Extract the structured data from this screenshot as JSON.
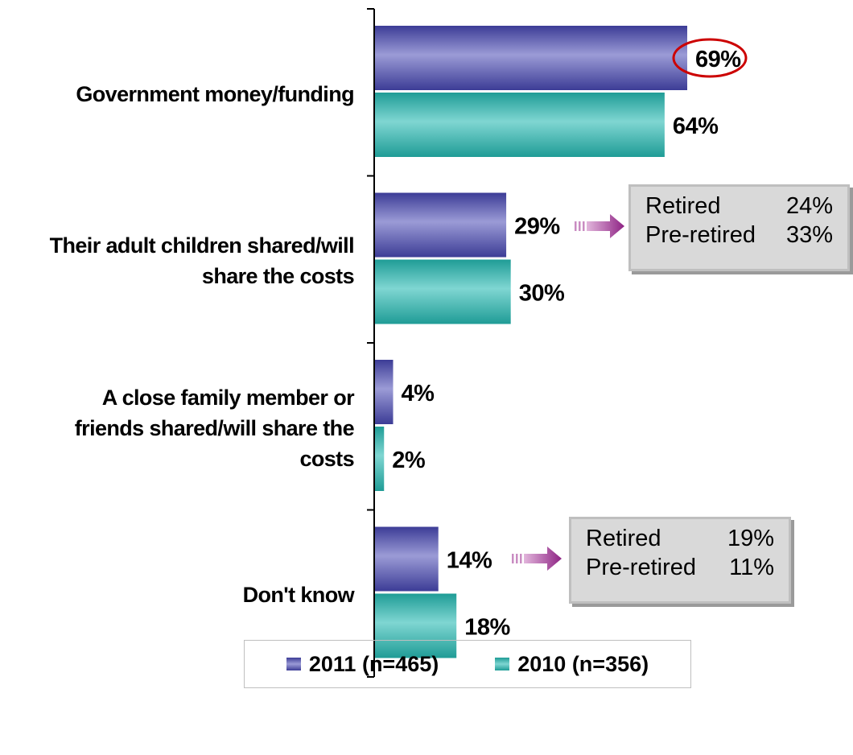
{
  "chart_data": {
    "type": "bar",
    "orientation": "horizontal",
    "categories": [
      "Government money/funding",
      "Their adult children shared/will share the costs",
      "A close family member or friends shared/will share the costs",
      "Don't know"
    ],
    "category_lines": [
      [
        "Government money/funding"
      ],
      [
        "Their adult children shared/will",
        "share the costs"
      ],
      [
        "A close family member or",
        "friends shared/will share the",
        "costs"
      ],
      [
        "Don't know"
      ]
    ],
    "series": [
      {
        "name": "2011 (n=465)",
        "values": [
          69,
          29,
          4,
          14
        ],
        "labels": [
          "69%",
          "29%",
          "4%",
          "14%"
        ],
        "color": "#8b8bcc"
      },
      {
        "name": "2010 (n=356)",
        "values": [
          64,
          30,
          2,
          18
        ],
        "labels": [
          "64%",
          "30%",
          "2%",
          "18%"
        ],
        "color": "#5fc4c0"
      }
    ],
    "xlim": [
      0,
      69
    ],
    "highlight": {
      "series": 0,
      "category": 0,
      "color": "#cc0000"
    },
    "legend_position": "bottom"
  },
  "callouts": [
    {
      "category": 1,
      "rows": [
        {
          "label": "Retired",
          "value": "24%"
        },
        {
          "label": "Pre-retired",
          "value": "33%"
        }
      ]
    },
    {
      "category": 3,
      "rows": [
        {
          "label": "Retired",
          "value": "19%"
        },
        {
          "label": "Pre-retired",
          "value": "11%"
        }
      ]
    }
  ],
  "colors": {
    "arrow": "#9b2d8e"
  }
}
